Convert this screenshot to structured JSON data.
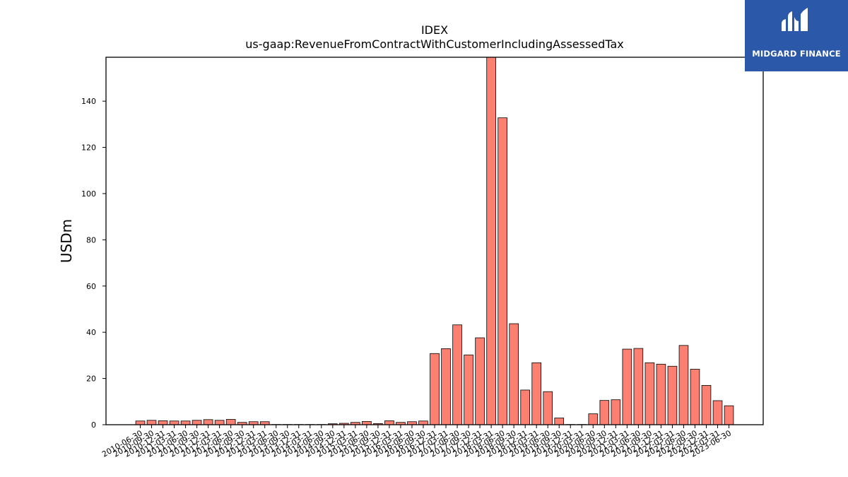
{
  "brand": {
    "name": "MIDGARD FINANCE",
    "bg_color": "#2b58a8"
  },
  "chart_data": {
    "type": "bar",
    "title": "IDEX",
    "subtitle": "us-gaap:RevenueFromContractWithCustomerIncludingAssessedTax",
    "ylabel": "USDm",
    "xlabel": "",
    "ylim": [
      0,
      159
    ],
    "yticks": [
      0,
      20,
      40,
      60,
      80,
      100,
      120,
      140
    ],
    "bar_color": "#fa8072",
    "bar_edge_color": "#000000",
    "grid": false,
    "legend": "none",
    "categories": [
      "2010-06-30",
      "2010-09-30",
      "2010-12-31",
      "2011-03-31",
      "2011-06-30",
      "2011-09-30",
      "2011-12-31",
      "2012-03-31",
      "2012-06-30",
      "2012-09-30",
      "2012-12-31",
      "2013-03-31",
      "2013-06-30",
      "2013-09-30",
      "2013-12-31",
      "2014-03-31",
      "2014-06-30",
      "2014-09-30",
      "2014-12-31",
      "2015-03-31",
      "2015-06-30",
      "2015-09-30",
      "2015-12-31",
      "2016-03-31",
      "2016-06-30",
      "2016-09-30",
      "2016-12-31",
      "2017-03-31",
      "2017-06-30",
      "2017-09-30",
      "2017-12-31",
      "2018-03-31",
      "2018-06-30",
      "2018-09-30",
      "2018-12-31",
      "2019-03-31",
      "2019-06-30",
      "2019-09-30",
      "2019-12-31",
      "2020-03-31",
      "2020-06-30",
      "2020-09-30",
      "2020-12-31",
      "2021-03-31",
      "2021-06-30",
      "2021-09-30",
      "2021-12-31",
      "2022-03-31",
      "2022-06-30",
      "2022-09-30",
      "2022-12-31",
      "2023-03-31",
      "2023-06-30"
    ],
    "values": [
      1.6,
      1.9,
      1.7,
      1.6,
      1.6,
      1.9,
      2.2,
      1.9,
      2.3,
      1.0,
      1.3,
      1.3,
      0.1,
      0.1,
      0.1,
      0.1,
      0.1,
      0.4,
      0.6,
      1.0,
      1.4,
      0.5,
      1.7,
      1.0,
      1.3,
      1.6,
      30.8,
      32.9,
      43.2,
      30.2,
      37.6,
      162.0,
      132.8,
      43.7,
      15.0,
      26.8,
      14.3,
      2.9,
      0.1,
      0.1,
      4.7,
      10.5,
      10.8,
      32.7,
      33.0,
      26.8,
      26.2,
      25.3,
      34.3,
      24.0,
      17.0,
      10.4,
      8.2
    ]
  }
}
